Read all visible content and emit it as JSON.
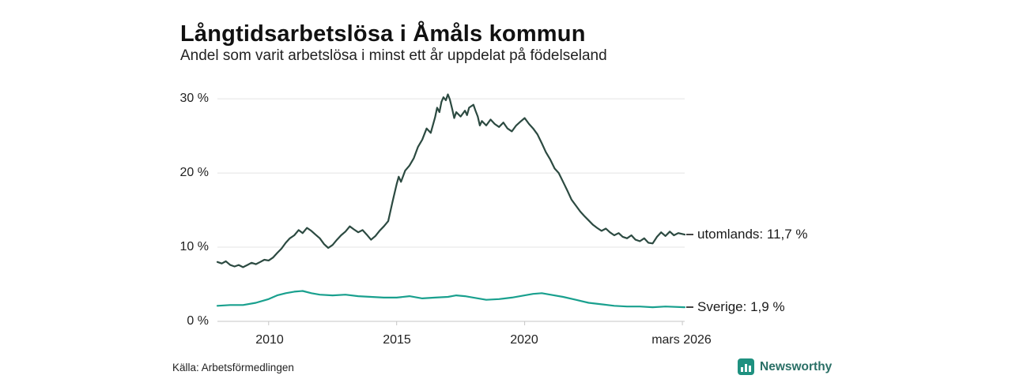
{
  "header": {
    "title": "Långtidsarbetslösa i Åmåls kommun",
    "subtitle": "Andel som varit arbetslösa i minst ett år uppdelat på födelseland"
  },
  "footer": {
    "source": "Källa: Arbetsförmedlingen",
    "brand": "Newsworthy",
    "brand_icon": "bar-chart-icon",
    "brand_color": "#1f9180"
  },
  "chart_data": {
    "type": "line",
    "title": "Långtidsarbetslösa i Åmåls kommun",
    "subtitle": "Andel som varit arbetslösa i minst ett år uppdelat på födelseland",
    "xlabel": "",
    "ylabel": "",
    "grid": true,
    "x_range": [
      2008,
      2026.25
    ],
    "y_range": [
      0,
      31.5
    ],
    "y_ticks": [
      {
        "value": 30,
        "label": "30 %"
      },
      {
        "value": 20,
        "label": "20 %"
      },
      {
        "value": 10,
        "label": "10 %"
      },
      {
        "value": 0,
        "label": "0 %"
      }
    ],
    "x_ticks": [
      {
        "value": 2010,
        "label": "2010"
      },
      {
        "value": 2015,
        "label": "2015"
      },
      {
        "value": 2020,
        "label": "2020"
      },
      {
        "value": 2026.16,
        "label": "mars 2026"
      }
    ],
    "series": [
      {
        "name": "utomlands",
        "color": "#2c4a41",
        "end_label": "utomlands: 11,7 %",
        "end_value": 11.7,
        "points": [
          [
            2008.0,
            8.0
          ],
          [
            2008.17,
            7.8
          ],
          [
            2008.33,
            8.1
          ],
          [
            2008.5,
            7.6
          ],
          [
            2008.67,
            7.4
          ],
          [
            2008.83,
            7.6
          ],
          [
            2009.0,
            7.3
          ],
          [
            2009.17,
            7.6
          ],
          [
            2009.33,
            7.9
          ],
          [
            2009.5,
            7.7
          ],
          [
            2009.67,
            8.0
          ],
          [
            2009.83,
            8.3
          ],
          [
            2010.0,
            8.2
          ],
          [
            2010.17,
            8.6
          ],
          [
            2010.33,
            9.2
          ],
          [
            2010.5,
            9.8
          ],
          [
            2010.67,
            10.6
          ],
          [
            2010.83,
            11.2
          ],
          [
            2011.0,
            11.6
          ],
          [
            2011.17,
            12.3
          ],
          [
            2011.33,
            11.9
          ],
          [
            2011.5,
            12.6
          ],
          [
            2011.67,
            12.2
          ],
          [
            2011.83,
            11.7
          ],
          [
            2012.0,
            11.2
          ],
          [
            2012.17,
            10.4
          ],
          [
            2012.33,
            9.9
          ],
          [
            2012.5,
            10.3
          ],
          [
            2012.67,
            11.0
          ],
          [
            2012.83,
            11.6
          ],
          [
            2013.0,
            12.1
          ],
          [
            2013.17,
            12.8
          ],
          [
            2013.33,
            12.4
          ],
          [
            2013.5,
            12.0
          ],
          [
            2013.67,
            12.3
          ],
          [
            2013.83,
            11.7
          ],
          [
            2014.0,
            11.0
          ],
          [
            2014.17,
            11.5
          ],
          [
            2014.33,
            12.2
          ],
          [
            2014.5,
            12.8
          ],
          [
            2014.67,
            13.5
          ],
          [
            2014.83,
            16.0
          ],
          [
            2015.0,
            18.5
          ],
          [
            2015.08,
            19.5
          ],
          [
            2015.17,
            18.8
          ],
          [
            2015.33,
            20.3
          ],
          [
            2015.5,
            21.0
          ],
          [
            2015.67,
            22.0
          ],
          [
            2015.83,
            23.5
          ],
          [
            2016.0,
            24.5
          ],
          [
            2016.17,
            26.0
          ],
          [
            2016.33,
            25.4
          ],
          [
            2016.5,
            27.5
          ],
          [
            2016.58,
            28.8
          ],
          [
            2016.67,
            28.2
          ],
          [
            2016.75,
            29.6
          ],
          [
            2016.83,
            30.2
          ],
          [
            2016.92,
            29.8
          ],
          [
            2017.0,
            30.6
          ],
          [
            2017.08,
            29.9
          ],
          [
            2017.17,
            28.6
          ],
          [
            2017.25,
            27.4
          ],
          [
            2017.33,
            28.2
          ],
          [
            2017.5,
            27.6
          ],
          [
            2017.67,
            28.4
          ],
          [
            2017.75,
            27.8
          ],
          [
            2017.83,
            28.8
          ],
          [
            2018.0,
            29.2
          ],
          [
            2018.08,
            28.4
          ],
          [
            2018.17,
            27.6
          ],
          [
            2018.25,
            26.4
          ],
          [
            2018.33,
            27.0
          ],
          [
            2018.5,
            26.4
          ],
          [
            2018.67,
            27.2
          ],
          [
            2018.83,
            26.6
          ],
          [
            2019.0,
            26.2
          ],
          [
            2019.17,
            26.8
          ],
          [
            2019.33,
            26.0
          ],
          [
            2019.5,
            25.6
          ],
          [
            2019.67,
            26.4
          ],
          [
            2019.83,
            26.9
          ],
          [
            2020.0,
            27.4
          ],
          [
            2020.17,
            26.6
          ],
          [
            2020.33,
            26.0
          ],
          [
            2020.5,
            25.2
          ],
          [
            2020.67,
            24.0
          ],
          [
            2020.83,
            22.8
          ],
          [
            2021.0,
            21.8
          ],
          [
            2021.17,
            20.6
          ],
          [
            2021.33,
            20.0
          ],
          [
            2021.5,
            18.8
          ],
          [
            2021.67,
            17.6
          ],
          [
            2021.83,
            16.4
          ],
          [
            2022.0,
            15.6
          ],
          [
            2022.17,
            14.8
          ],
          [
            2022.33,
            14.2
          ],
          [
            2022.5,
            13.6
          ],
          [
            2022.67,
            13.0
          ],
          [
            2022.83,
            12.6
          ],
          [
            2023.0,
            12.2
          ],
          [
            2023.17,
            12.5
          ],
          [
            2023.33,
            12.0
          ],
          [
            2023.5,
            11.6
          ],
          [
            2023.67,
            11.9
          ],
          [
            2023.83,
            11.4
          ],
          [
            2024.0,
            11.2
          ],
          [
            2024.17,
            11.6
          ],
          [
            2024.33,
            11.0
          ],
          [
            2024.5,
            10.8
          ],
          [
            2024.67,
            11.2
          ],
          [
            2024.83,
            10.6
          ],
          [
            2025.0,
            10.5
          ],
          [
            2025.17,
            11.4
          ],
          [
            2025.33,
            12.0
          ],
          [
            2025.5,
            11.5
          ],
          [
            2025.67,
            12.1
          ],
          [
            2025.83,
            11.6
          ],
          [
            2026.0,
            11.9
          ],
          [
            2026.25,
            11.7
          ]
        ]
      },
      {
        "name": "Sverige",
        "color": "#19a08e",
        "end_label": "Sverige:  1,9 %",
        "end_value": 1.9,
        "points": [
          [
            2008.0,
            2.1
          ],
          [
            2008.5,
            2.2
          ],
          [
            2009.0,
            2.2
          ],
          [
            2009.5,
            2.5
          ],
          [
            2010.0,
            3.0
          ],
          [
            2010.33,
            3.5
          ],
          [
            2010.67,
            3.8
          ],
          [
            2011.0,
            4.0
          ],
          [
            2011.33,
            4.1
          ],
          [
            2011.67,
            3.8
          ],
          [
            2012.0,
            3.6
          ],
          [
            2012.5,
            3.5
          ],
          [
            2013.0,
            3.6
          ],
          [
            2013.5,
            3.4
          ],
          [
            2014.0,
            3.3
          ],
          [
            2014.5,
            3.2
          ],
          [
            2015.0,
            3.2
          ],
          [
            2015.5,
            3.4
          ],
          [
            2016.0,
            3.1
          ],
          [
            2016.5,
            3.2
          ],
          [
            2017.0,
            3.3
          ],
          [
            2017.33,
            3.5
          ],
          [
            2017.67,
            3.4
          ],
          [
            2018.0,
            3.2
          ],
          [
            2018.5,
            2.9
          ],
          [
            2019.0,
            3.0
          ],
          [
            2019.5,
            3.2
          ],
          [
            2020.0,
            3.5
          ],
          [
            2020.33,
            3.7
          ],
          [
            2020.67,
            3.8
          ],
          [
            2021.0,
            3.6
          ],
          [
            2021.5,
            3.3
          ],
          [
            2022.0,
            2.9
          ],
          [
            2022.5,
            2.5
          ],
          [
            2023.0,
            2.3
          ],
          [
            2023.5,
            2.1
          ],
          [
            2024.0,
            2.0
          ],
          [
            2024.5,
            2.0
          ],
          [
            2025.0,
            1.9
          ],
          [
            2025.5,
            2.0
          ],
          [
            2026.25,
            1.9
          ]
        ]
      }
    ]
  }
}
